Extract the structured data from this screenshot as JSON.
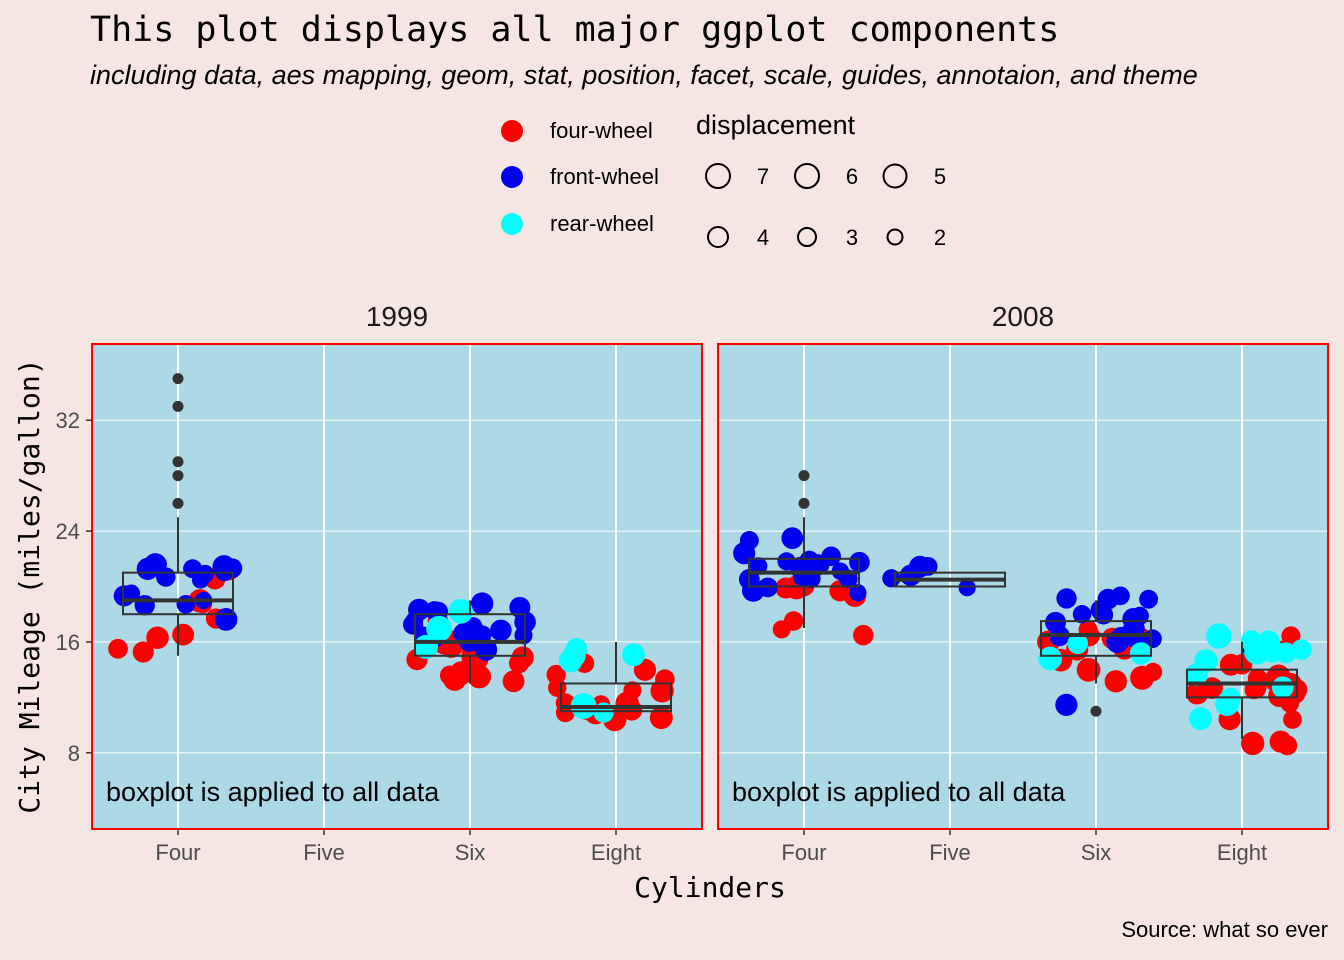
{
  "chart_data": {
    "type": "scatter",
    "title": "This plot displays all major ggplot components",
    "subtitle": "including data, aes mapping, geom, stat, position, facet, scale, guides, annotaion, and theme",
    "caption": "Source: what so ever",
    "xlabel": "Cylinders",
    "ylabel": "City Mileage (miles/gallon)",
    "categories": [
      "Four",
      "Five",
      "Six",
      "Eight"
    ],
    "y_ticks": [
      8,
      16,
      24,
      32
    ],
    "ylim": [
      2.5,
      37.5
    ],
    "grid": true,
    "legend_position": "top",
    "legend": {
      "color_items": [
        {
          "label": "four-wheel",
          "color": "#ff0000"
        },
        {
          "label": "front-wheel",
          "color": "#0000ee"
        },
        {
          "label": "rear-wheel",
          "color": "#00ffff"
        }
      ],
      "size_title": "displacement",
      "size_items": [
        "7",
        "6",
        "5",
        "4",
        "3",
        "2"
      ]
    },
    "annotation": "boxplot is applied to all data",
    "colors": {
      "panel_bg": "#add8e6",
      "panel_border": "#ff0000",
      "page_bg": "#f5e6e3",
      "box": "#333333",
      "outlier": "#333333"
    },
    "facets": [
      {
        "label": "1999",
        "boxplots": [
          {
            "category": "Four",
            "whisker_low": 15,
            "q1": 18,
            "median": 19,
            "q3": 21,
            "whisker_high": 25,
            "outliers": [
              26,
              28,
              29,
              33,
              35
            ]
          },
          {
            "category": "Six",
            "whisker_low": 13,
            "q1": 15,
            "median": 16,
            "q3": 18,
            "whisker_high": 19,
            "outliers": []
          },
          {
            "category": "Eight",
            "whisker_low": 11,
            "q1": 11,
            "median": 11.3,
            "q3": 13,
            "whisker_high": 16,
            "outliers": []
          }
        ],
        "points": {
          "four-wheel": [
            {
              "cat": "Four",
              "y": [
                15,
                15,
                16,
                16.3,
                18,
                18.5,
                19,
                21,
                21
              ]
            },
            {
              "cat": "Six",
              "y": [
                13,
                13.5,
                14,
                14,
                14.5,
                15,
                15,
                15,
                15.5,
                15.5,
                16,
                16,
                17,
                13,
                14,
                15
              ]
            },
            {
              "cat": "Eight",
              "y": [
                11,
                11,
                11,
                11,
                11,
                11.5,
                12,
                12,
                13,
                13,
                13.5,
                14,
                14,
                11,
                11,
                12
              ]
            }
          ],
          "front-wheel": [
            {
              "cat": "Four",
              "y": [
                18,
                18.5,
                19,
                19,
                19,
                19,
                20,
                21,
                21,
                21,
                21,
                21,
                21,
                21,
                21
              ]
            },
            {
              "cat": "Six",
              "y": [
                15,
                16,
                16,
                16.5,
                17,
                17,
                17,
                17.5,
                18,
                18,
                18,
                18,
                18,
                18.5,
                18,
                17,
                16
              ]
            }
          ],
          "rear-wheel": [
            {
              "cat": "Six",
              "y": [
                16,
                17,
                18
              ]
            },
            {
              "cat": "Eight",
              "y": [
                11,
                11,
                14.5,
                15,
                16,
                15
              ]
            }
          ]
        }
      },
      {
        "label": "2008",
        "boxplots": [
          {
            "category": "Four",
            "whisker_low": 17,
            "q1": 20,
            "median": 21,
            "q3": 22,
            "whisker_high": 25,
            "outliers": [
              26,
              28
            ]
          },
          {
            "category": "Five",
            "whisker_low": 20,
            "q1": 20,
            "median": 20.5,
            "q3": 21,
            "whisker_high": 21,
            "outliers": []
          },
          {
            "category": "Six",
            "whisker_low": 13,
            "q1": 15,
            "median": 16.5,
            "q3": 17.5,
            "whisker_high": 19,
            "outliers": [
              11
            ]
          },
          {
            "category": "Eight",
            "whisker_low": 9,
            "q1": 12,
            "median": 13,
            "q3": 14,
            "whisker_high": 16,
            "outliers": []
          }
        ],
        "points": {
          "four-wheel": [
            {
              "cat": "Four",
              "y": [
                17,
                17.5,
                18,
                19,
                19.5,
                19.5,
                20,
                20
              ]
            },
            {
              "cat": "Six",
              "y": [
                13,
                13,
                14,
                14,
                15,
                15,
                15,
                15.5,
                16,
                16,
                16.5,
                17
              ]
            },
            {
              "cat": "Eight",
              "y": [
                9,
                9,
                9,
                11,
                11,
                12,
                12,
                12,
                12,
                12.5,
                12.5,
                13,
                13,
                13,
                13,
                13,
                13.5,
                14,
                14,
                14,
                15,
                16,
                16
              ]
            }
          ],
          "front-wheel": [
            {
              "cat": "Four",
              "y": [
                19,
                20,
                20,
                20.5,
                21,
                21,
                21,
                21,
                21,
                21,
                21.5,
                21.5,
                22,
                22,
                22,
                22,
                22,
                22,
                23,
                23
              ]
            },
            {
              "cat": "Five",
              "y": [
                20,
                20,
                20.5,
                21,
                21.5
              ]
            },
            {
              "cat": "Six",
              "y": [
                11,
                16,
                16,
                16,
                16.5,
                17,
                17,
                17,
                17,
                17.5,
                17.5,
                18,
                18,
                18,
                19,
                19,
                19,
                19
              ]
            },
            {
              "cat": "Eight",
              "y": [
                16
              ]
            }
          ],
          "rear-wheel": [
            {
              "cat": "Six",
              "y": [
                15,
                15,
                16
              ]
            },
            {
              "cat": "Eight",
              "y": [
                11,
                12,
                12,
                13,
                14,
                14.5,
                15,
                15,
                15,
                15.5,
                16,
                16,
                16
              ]
            }
          ]
        }
      }
    ]
  }
}
